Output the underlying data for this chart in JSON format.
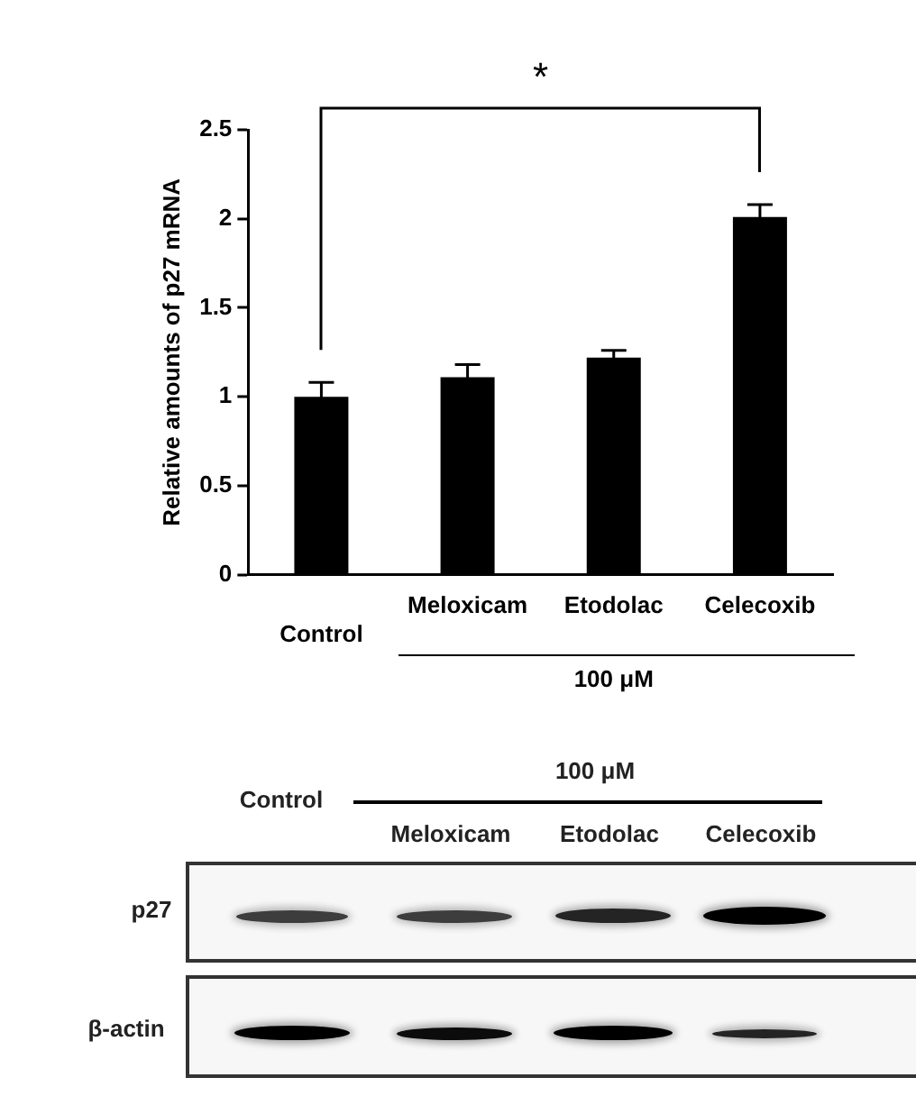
{
  "chart_data": {
    "type": "bar",
    "ylabel": "Relative amounts of p27 mRNA",
    "categories": [
      "Control",
      "Meloxicam",
      "Etodolac",
      "Celecoxib"
    ],
    "values": [
      1.0,
      1.11,
      1.22,
      2.01
    ],
    "errors": [
      0.08,
      0.07,
      0.04,
      0.07
    ],
    "color": "#000000",
    "ylim": [
      0,
      2.5
    ],
    "yticks": [
      0,
      0.5,
      1.0,
      1.5,
      2.0,
      2.5
    ],
    "grid": false,
    "legend": false,
    "annotations": [
      "*",
      "100 μM",
      "Control",
      "100 μM",
      "Meloxicam",
      "Etodolac",
      "Celecoxib",
      "p27",
      "β-actin"
    ]
  }
}
